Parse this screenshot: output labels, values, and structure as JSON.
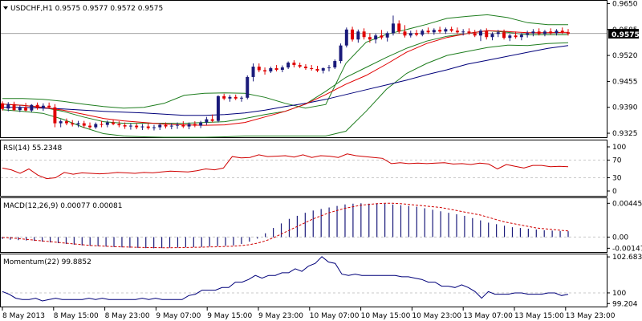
{
  "colors": {
    "background": "#ffffff",
    "bull_candle": "#1a1a7a",
    "bear_candle": "#e00000",
    "bollinger": "#1e7d1e",
    "ma_fast": "#e00000",
    "ma_slow": "#00007a",
    "rsi": "#d00000",
    "macd_hist": "#1a1a7a",
    "macd_signal": "#d00000",
    "momentum": "#00007a",
    "grid": "#c8c8c8",
    "price_line": "#808080"
  },
  "chart_data": [
    {
      "type": "line",
      "panel": "price",
      "title": "USDCHF,H1  0.9575 0.9577 0.9572 0.9575",
      "current_price_label": "0.9575",
      "yticks": [
        "0.9650",
        "0.9585",
        "0.9520",
        "0.9455",
        "0.9390",
        "0.9325"
      ],
      "ylim": [
        0.9315,
        0.9655
      ],
      "candles_ohlc": [
        [
          0.94,
          0.9405,
          0.9382,
          0.9386
        ],
        [
          0.9387,
          0.9403,
          0.938,
          0.9398
        ],
        [
          0.9398,
          0.9404,
          0.9381,
          0.9383
        ],
        [
          0.9383,
          0.9395,
          0.9378,
          0.939
        ],
        [
          0.939,
          0.9401,
          0.938,
          0.9382
        ],
        [
          0.9382,
          0.9398,
          0.9378,
          0.9396
        ],
        [
          0.9396,
          0.9402,
          0.9384,
          0.9388
        ],
        [
          0.9388,
          0.94,
          0.9381,
          0.9394
        ],
        [
          0.9394,
          0.9402,
          0.9388,
          0.939
        ],
        [
          0.939,
          0.9398,
          0.934,
          0.935
        ],
        [
          0.935,
          0.936,
          0.934,
          0.9355
        ],
        [
          0.9355,
          0.9362,
          0.9345,
          0.935
        ],
        [
          0.935,
          0.9358,
          0.9342,
          0.9347
        ],
        [
          0.9347,
          0.9356,
          0.934,
          0.935
        ],
        [
          0.935,
          0.9356,
          0.9338,
          0.9344
        ],
        [
          0.9344,
          0.9352,
          0.9336,
          0.934
        ],
        [
          0.934,
          0.9352,
          0.9336,
          0.9348
        ],
        [
          0.9348,
          0.9356,
          0.934,
          0.9346
        ],
        [
          0.9346,
          0.9357,
          0.934,
          0.9352
        ],
        [
          0.9352,
          0.9358,
          0.9345,
          0.9348
        ],
        [
          0.9348,
          0.9355,
          0.934,
          0.9345
        ],
        [
          0.9345,
          0.9352,
          0.9336,
          0.9342
        ],
        [
          0.9342,
          0.935,
          0.9334,
          0.9344
        ],
        [
          0.9344,
          0.935,
          0.9335,
          0.934
        ],
        [
          0.934,
          0.9348,
          0.9333,
          0.9342
        ],
        [
          0.9342,
          0.9349,
          0.9334,
          0.9338
        ],
        [
          0.9338,
          0.9346,
          0.9332,
          0.934
        ],
        [
          0.934,
          0.935,
          0.9333,
          0.9346
        ],
        [
          0.9346,
          0.9352,
          0.9337,
          0.9342
        ],
        [
          0.9342,
          0.935,
          0.9335,
          0.9344
        ],
        [
          0.9344,
          0.9352,
          0.9336,
          0.9346
        ],
        [
          0.9346,
          0.9355,
          0.9338,
          0.9342
        ],
        [
          0.9342,
          0.9352,
          0.9335,
          0.9348
        ],
        [
          0.9348,
          0.9355,
          0.934,
          0.9344
        ],
        [
          0.9344,
          0.9356,
          0.9338,
          0.9352
        ],
        [
          0.9352,
          0.9366,
          0.9346,
          0.936
        ],
        [
          0.936,
          0.9372,
          0.9352,
          0.9356
        ],
        [
          0.9356,
          0.942,
          0.9352,
          0.9418
        ],
        [
          0.9418,
          0.9424,
          0.9408,
          0.9412
        ],
        [
          0.9412,
          0.9421,
          0.9404,
          0.9416
        ],
        [
          0.9416,
          0.9422,
          0.9408,
          0.9412
        ],
        [
          0.9412,
          0.9418,
          0.9404,
          0.9414
        ],
        [
          0.9414,
          0.947,
          0.941,
          0.9466
        ],
        [
          0.9466,
          0.95,
          0.9455,
          0.9492
        ],
        [
          0.9492,
          0.95,
          0.9478,
          0.9483
        ],
        [
          0.9483,
          0.949,
          0.9472,
          0.948
        ],
        [
          0.948,
          0.9492,
          0.9476,
          0.9488
        ],
        [
          0.9488,
          0.9496,
          0.948,
          0.9484
        ],
        [
          0.9484,
          0.9495,
          0.9478,
          0.949
        ],
        [
          0.949,
          0.9505,
          0.9486,
          0.9502
        ],
        [
          0.9502,
          0.9508,
          0.949,
          0.9496
        ],
        [
          0.9496,
          0.9502,
          0.9488,
          0.9492
        ],
        [
          0.9492,
          0.9498,
          0.9484,
          0.9488
        ],
        [
          0.9488,
          0.9496,
          0.9482,
          0.9486
        ],
        [
          0.9486,
          0.9494,
          0.9478,
          0.9482
        ],
        [
          0.9482,
          0.949,
          0.9475,
          0.9488
        ],
        [
          0.9488,
          0.9496,
          0.948,
          0.949
        ],
        [
          0.949,
          0.951,
          0.9486,
          0.9506
        ],
        [
          0.9506,
          0.955,
          0.95,
          0.9545
        ],
        [
          0.9545,
          0.959,
          0.954,
          0.9585
        ],
        [
          0.9585,
          0.9592,
          0.9555,
          0.956
        ],
        [
          0.956,
          0.9585,
          0.9552,
          0.958
        ],
        [
          0.958,
          0.9588,
          0.956,
          0.9566
        ],
        [
          0.9566,
          0.9576,
          0.9552,
          0.956
        ],
        [
          0.956,
          0.9575,
          0.955,
          0.957
        ],
        [
          0.957,
          0.9584,
          0.956,
          0.9565
        ],
        [
          0.9565,
          0.958,
          0.9555,
          0.9576
        ],
        [
          0.9576,
          0.962,
          0.957,
          0.96
        ],
        [
          0.96,
          0.9608,
          0.9575,
          0.958
        ],
        [
          0.958,
          0.9596,
          0.9565,
          0.957
        ],
        [
          0.957,
          0.9582,
          0.9565,
          0.9576
        ],
        [
          0.9576,
          0.9584,
          0.9568,
          0.9572
        ],
        [
          0.9572,
          0.9586,
          0.9568,
          0.9582
        ],
        [
          0.9582,
          0.959,
          0.9574,
          0.9578
        ],
        [
          0.9578,
          0.9588,
          0.9572,
          0.9584
        ],
        [
          0.9584,
          0.9592,
          0.9576,
          0.958
        ],
        [
          0.958,
          0.959,
          0.9574,
          0.9586
        ],
        [
          0.9586,
          0.9592,
          0.9578,
          0.9582
        ],
        [
          0.9582,
          0.959,
          0.9574,
          0.9578
        ],
        [
          0.9578,
          0.9586,
          0.957,
          0.958
        ],
        [
          0.958,
          0.9588,
          0.9572,
          0.9576
        ],
        [
          0.9576,
          0.9584,
          0.9566,
          0.957
        ],
        [
          0.957,
          0.9586,
          0.9556,
          0.9582
        ],
        [
          0.9582,
          0.9588,
          0.956,
          0.9566
        ],
        [
          0.9566,
          0.9578,
          0.9558,
          0.9574
        ],
        [
          0.9574,
          0.9584,
          0.9566,
          0.9578
        ],
        [
          0.9578,
          0.9585,
          0.956,
          0.9564
        ],
        [
          0.9564,
          0.9574,
          0.9556,
          0.957
        ],
        [
          0.957,
          0.958,
          0.9562,
          0.9566
        ],
        [
          0.9566,
          0.9576,
          0.9558,
          0.9572
        ],
        [
          0.9572,
          0.9582,
          0.9565,
          0.9576
        ],
        [
          0.9576,
          0.9586,
          0.9568,
          0.958
        ],
        [
          0.958,
          0.9588,
          0.957,
          0.9574
        ],
        [
          0.9574,
          0.9584,
          0.9568,
          0.958
        ],
        [
          0.958,
          0.9588,
          0.9572,
          0.9576
        ],
        [
          0.9576,
          0.9586,
          0.957,
          0.9582
        ],
        [
          0.9582,
          0.959,
          0.9574,
          0.9578
        ],
        [
          0.9578,
          0.9586,
          0.957,
          0.9575
        ]
      ],
      "bollinger_upper": [
        0.9412,
        0.9412,
        0.941,
        0.9405,
        0.9398,
        0.9392,
        0.9388,
        0.939,
        0.94,
        0.942,
        0.9425,
        0.9426,
        0.9425,
        0.9415,
        0.94,
        0.9388,
        0.9397,
        0.95,
        0.9553,
        0.9573,
        0.9585,
        0.9598,
        0.9613,
        0.9618,
        0.9622,
        0.9615,
        0.9602,
        0.9597,
        0.9597
      ],
      "bollinger_middle": [
        0.9398,
        0.9395,
        0.939,
        0.938,
        0.9366,
        0.9354,
        0.935,
        0.935,
        0.935,
        0.935,
        0.9352,
        0.9354,
        0.9362,
        0.9372,
        0.938,
        0.9398,
        0.943,
        0.9465,
        0.949,
        0.9515,
        0.9538,
        0.9556,
        0.9568,
        0.9575,
        0.9582,
        0.9578,
        0.9572,
        0.9572,
        0.9572
      ],
      "bollinger_lower": [
        0.9384,
        0.938,
        0.9375,
        0.936,
        0.934,
        0.9324,
        0.9318,
        0.9316,
        0.9315,
        0.9315,
        0.9315,
        0.9316,
        0.9318,
        0.9318,
        0.9318,
        0.9318,
        0.9318,
        0.933,
        0.938,
        0.9435,
        0.9475,
        0.95,
        0.952,
        0.953,
        0.954,
        0.9546,
        0.9545,
        0.955,
        0.9552
      ],
      "ma_fast": [
        0.9398,
        0.9395,
        0.939,
        0.9383,
        0.9373,
        0.9362,
        0.9356,
        0.9352,
        0.9348,
        0.9346,
        0.9345,
        0.9346,
        0.9352,
        0.9366,
        0.938,
        0.9398,
        0.9422,
        0.9448,
        0.947,
        0.9498,
        0.9528,
        0.955,
        0.9565,
        0.9575,
        0.9582,
        0.958,
        0.9577,
        0.9577,
        0.9578
      ],
      "ma_slow": [
        0.939,
        0.939,
        0.9388,
        0.9386,
        0.9383,
        0.938,
        0.9378,
        0.9376,
        0.9373,
        0.937,
        0.937,
        0.9372,
        0.9376,
        0.9383,
        0.9392,
        0.94,
        0.941,
        0.9422,
        0.9434,
        0.9446,
        0.9458,
        0.9472,
        0.9484,
        0.9498,
        0.9508,
        0.9518,
        0.9528,
        0.9538,
        0.9545
      ]
    },
    {
      "type": "line",
      "panel": "rsi",
      "title": "RSI(14) 55.2348",
      "yticks": [
        "100",
        "70",
        "30",
        "0"
      ],
      "ylim": [
        0,
        100
      ],
      "levels": [
        70,
        30
      ],
      "values": [
        52,
        48,
        40,
        50,
        36,
        28,
        30,
        42,
        38,
        41,
        40,
        39,
        40,
        42,
        41,
        40,
        42,
        41,
        43,
        45,
        44,
        43,
        46,
        50,
        48,
        52,
        78,
        75,
        76,
        82,
        78,
        79,
        80,
        77,
        82,
        76,
        80,
        79,
        76,
        84,
        80,
        78,
        76,
        74,
        62,
        64,
        62,
        63,
        62,
        63,
        64,
        61,
        62,
        60,
        63,
        61,
        50,
        60,
        56,
        52,
        58,
        58,
        55,
        56,
        55
      ]
    },
    {
      "type": "bar",
      "panel": "macd",
      "title": "MACD(12,26,9) 0.00077 0.00081",
      "yticks": [
        "0.00445",
        "0.00",
        "-0.00147"
      ],
      "ylim": [
        -0.00175,
        0.0048
      ],
      "histogram": [
        -0.00025,
        -0.00035,
        -0.0004,
        -0.00045,
        -0.0005,
        -0.0006,
        -0.0007,
        -0.0008,
        -0.0009,
        -0.001,
        -0.0011,
        -0.00115,
        -0.0012,
        -0.00125,
        -0.0013,
        -0.00135,
        -0.0014,
        -0.00142,
        -0.00145,
        -0.00147,
        -0.00145,
        -0.0014,
        -0.00138,
        -0.00135,
        -0.00132,
        -0.0013,
        -0.00125,
        -0.0012,
        -0.00115,
        -0.0011,
        -0.0009,
        -0.0006,
        -0.0002,
        0.0005,
        0.0012,
        0.0018,
        0.0024,
        0.0028,
        0.0032,
        0.0035,
        0.0037,
        0.0039,
        0.0041,
        0.0043,
        0.0044,
        0.00445,
        0.0044,
        0.00445,
        0.0044,
        0.0043,
        0.0042,
        0.0041,
        0.004,
        0.0038,
        0.0036,
        0.0034,
        0.0032,
        0.003,
        0.0028,
        0.0025,
        0.0022,
        0.0019,
        0.0017,
        0.0015,
        0.0013,
        0.0012,
        0.0011,
        0.001,
        0.0009,
        0.00085,
        0.0008,
        0.00077
      ],
      "signal": [
        -5e-05,
        -0.0001,
        -0.0002,
        -0.0003,
        -0.0004,
        -0.0005,
        -0.0006,
        -0.0007,
        -0.0008,
        -0.0009,
        -0.001,
        -0.0011,
        -0.00115,
        -0.0012,
        -0.00125,
        -0.0013,
        -0.00132,
        -0.00135,
        -0.00137,
        -0.00138,
        -0.0014,
        -0.0014,
        -0.00139,
        -0.00137,
        -0.00135,
        -0.00133,
        -0.0013,
        -0.00127,
        -0.00123,
        -0.0012,
        -0.00112,
        -0.001,
        -0.0008,
        -0.0005,
        -0.0001,
        0.0004,
        0.0009,
        0.0014,
        0.0019,
        0.0024,
        0.0028,
        0.0032,
        0.0035,
        0.0038,
        0.004,
        0.0042,
        0.0043,
        0.0044,
        0.00445,
        0.00445,
        0.0044,
        0.0043,
        0.0042,
        0.0041,
        0.004,
        0.0039,
        0.0037,
        0.0035,
        0.0033,
        0.0031,
        0.0029,
        0.0026,
        0.0023,
        0.002,
        0.0018,
        0.0016,
        0.0014,
        0.0012,
        0.0011,
        0.001,
        0.0009,
        0.00081
      ]
    },
    {
      "type": "line",
      "panel": "momentum",
      "title": "Momentum(22) 99.8852",
      "yticks": [
        "102.6835",
        "100",
        "99.204"
      ],
      "ylim": [
        99.1,
        102.75
      ],
      "values": [
        100.1,
        99.9,
        99.6,
        99.5,
        99.5,
        99.6,
        99.4,
        99.5,
        99.6,
        99.5,
        99.5,
        99.5,
        99.5,
        99.6,
        99.5,
        99.6,
        99.5,
        99.5,
        99.5,
        99.5,
        99.5,
        99.6,
        99.5,
        99.6,
        99.5,
        99.5,
        99.5,
        99.5,
        99.8,
        99.9,
        100.2,
        100.2,
        100.2,
        100.4,
        100.4,
        100.8,
        100.8,
        101.0,
        101.3,
        101.1,
        101.3,
        101.3,
        101.5,
        101.5,
        101.8,
        101.6,
        102.0,
        102.2,
        102.7,
        102.3,
        102.2,
        101.4,
        101.3,
        101.4,
        101.3,
        101.3,
        101.3,
        101.3,
        101.3,
        101.3,
        101.2,
        101.2,
        101.1,
        101.0,
        100.8,
        100.8,
        100.5,
        100.5,
        100.4,
        100.6,
        100.4,
        100.1,
        99.6,
        100.1,
        99.9,
        99.9,
        99.9,
        100.0,
        100.0,
        99.9,
        99.9,
        99.9,
        100.0,
        100.0,
        99.8,
        99.89
      ]
    }
  ],
  "x_axis": {
    "labels": [
      "8 May 2013",
      "8 May 15:00",
      "8 May 23:00",
      "9 May 07:00",
      "9 May 15:00",
      "9 May 23:00",
      "10 May 07:00",
      "10 May 15:00",
      "10 May 23:00",
      "13 May 07:00",
      "13 May 15:00",
      "13 May 23:00"
    ]
  }
}
